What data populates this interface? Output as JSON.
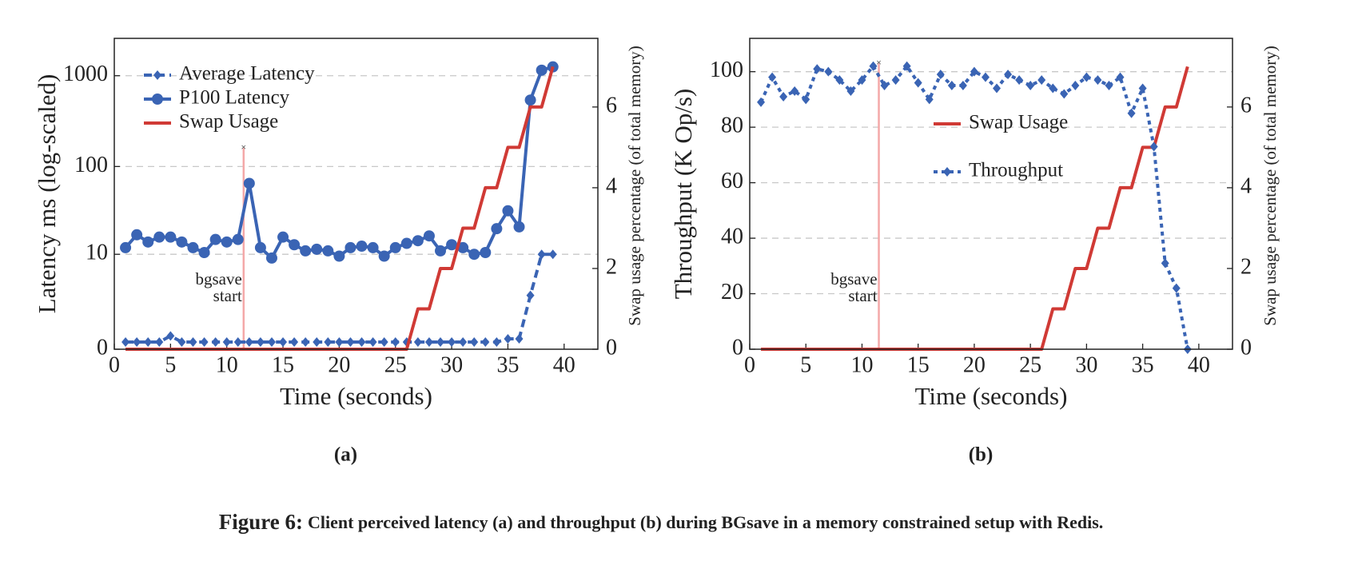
{
  "chart_data": [
    {
      "type": "line",
      "subcaption": "(a)",
      "xlabel": "Time (seconds)",
      "ylabel": "Latency ms (log-scaled)",
      "y2label": "Swap usage percentage (of total memory)",
      "yscale": "log1p",
      "xlim": [
        0,
        43
      ],
      "xticks": [
        0,
        5,
        10,
        15,
        20,
        25,
        30,
        35,
        40
      ],
      "ylim": [
        0,
        2570
      ],
      "yticks": [
        0,
        10,
        100,
        1000
      ],
      "y2lim": [
        0,
        7.7
      ],
      "y2ticks": [
        0,
        2,
        4,
        6
      ],
      "grid": true,
      "legend": "upper left",
      "x": [
        1,
        2,
        3,
        4,
        5,
        6,
        7,
        8,
        9,
        10,
        11,
        12,
        13,
        14,
        15,
        16,
        17,
        18,
        19,
        20,
        21,
        22,
        23,
        24,
        25,
        26,
        27,
        28,
        29,
        30,
        31,
        32,
        33,
        34,
        35,
        36,
        37,
        38,
        39
      ],
      "series": [
        {
          "name": "Average Latency",
          "color": "#3a64b4",
          "linestyle": "dashed",
          "marker": "diamond",
          "values": [
            0.2,
            0.2,
            0.2,
            0.2,
            0.4,
            0.2,
            0.2,
            0.2,
            0.2,
            0.2,
            0.2,
            0.2,
            0.2,
            0.2,
            0.2,
            0.2,
            0.2,
            0.2,
            0.2,
            0.2,
            0.2,
            0.2,
            0.2,
            0.2,
            0.2,
            0.2,
            0.2,
            0.2,
            0.2,
            0.2,
            0.2,
            0.2,
            0.2,
            0.2,
            0.3,
            0.3,
            2.9,
            10,
            10
          ]
        },
        {
          "name": "P100 Latency",
          "color": "#3a64b4",
          "linestyle": "solid",
          "marker": "circle",
          "values": [
            12,
            17,
            14,
            16,
            16,
            14,
            12,
            10.5,
            15,
            14,
            15,
            65,
            12,
            9,
            16,
            13,
            11,
            11.5,
            11,
            9.5,
            12,
            12.5,
            12,
            9.5,
            12,
            13.5,
            14.5,
            16.5,
            11,
            13,
            12,
            10,
            10.5,
            20,
            32,
            21,
            540,
            1150,
            1250
          ]
        },
        {
          "name": "Swap Usage",
          "color": "#d03a35",
          "linestyle": "solid",
          "marker": null,
          "axis": "y2",
          "values": [
            0,
            0,
            0,
            0,
            0,
            0,
            0,
            0,
            0,
            0,
            0,
            0,
            0,
            0,
            0,
            0,
            0,
            0,
            0,
            0,
            0,
            0,
            0,
            0,
            0,
            0,
            1,
            1,
            2,
            2,
            3,
            3,
            4,
            4,
            5,
            5,
            6,
            6,
            7
          ]
        }
      ],
      "annotation": {
        "x": 11.5,
        "y": 160,
        "color": "#f4a8a8",
        "lines": [
          "bgsave",
          "start"
        ]
      }
    },
    {
      "type": "line",
      "subcaption": "(b)",
      "xlabel": "Time (seconds)",
      "ylabel": "Throughput (K Op/s)",
      "y2label": "Swap usage percentage (of total memory)",
      "xlim": [
        0,
        43
      ],
      "xticks": [
        0,
        5,
        10,
        15,
        20,
        25,
        30,
        35,
        40
      ],
      "ylim": [
        0,
        112
      ],
      "yticks": [
        0,
        20,
        40,
        60,
        80,
        100
      ],
      "y2lim": [
        0,
        7.7
      ],
      "y2ticks": [
        0,
        2,
        4,
        6
      ],
      "grid": true,
      "legend": "upper center",
      "x": [
        1,
        2,
        3,
        4,
        5,
        6,
        7,
        8,
        9,
        10,
        11,
        12,
        13,
        14,
        15,
        16,
        17,
        18,
        19,
        20,
        21,
        22,
        23,
        24,
        25,
        26,
        27,
        28,
        29,
        30,
        31,
        32,
        33,
        34,
        35,
        36,
        37,
        38,
        39
      ],
      "series": [
        {
          "name": "Swap Usage",
          "color": "#d03a35",
          "linestyle": "solid",
          "marker": null,
          "axis": "y2",
          "values": [
            0,
            0,
            0,
            0,
            0,
            0,
            0,
            0,
            0,
            0,
            0,
            0,
            0,
            0,
            0,
            0,
            0,
            0,
            0,
            0,
            0,
            0,
            0,
            0,
            0,
            0,
            1,
            1,
            2,
            2,
            3,
            3,
            4,
            4,
            5,
            5,
            6,
            6,
            7
          ]
        },
        {
          "name": "Throughput",
          "color": "#3a64b4",
          "linestyle": "dotted",
          "marker": "diamond",
          "values": [
            89,
            98,
            91,
            93,
            90,
            101,
            100,
            97,
            93,
            97,
            102,
            95,
            97,
            102,
            96,
            90,
            99,
            95,
            95,
            100,
            98,
            94,
            99,
            97,
            95,
            97,
            94,
            92,
            95,
            98,
            97,
            95,
            98,
            85,
            94,
            73,
            31,
            22,
            0
          ]
        }
      ],
      "annotation": {
        "x": 11.5,
        "y": 103,
        "color": "#f4a8a8",
        "lines": [
          "bgsave",
          "start"
        ]
      }
    }
  ],
  "caption": {
    "label": "Figure 6:",
    "text": "Client perceived latency (a) and throughput (b) during BGsave in a memory constrained setup with Redis."
  }
}
